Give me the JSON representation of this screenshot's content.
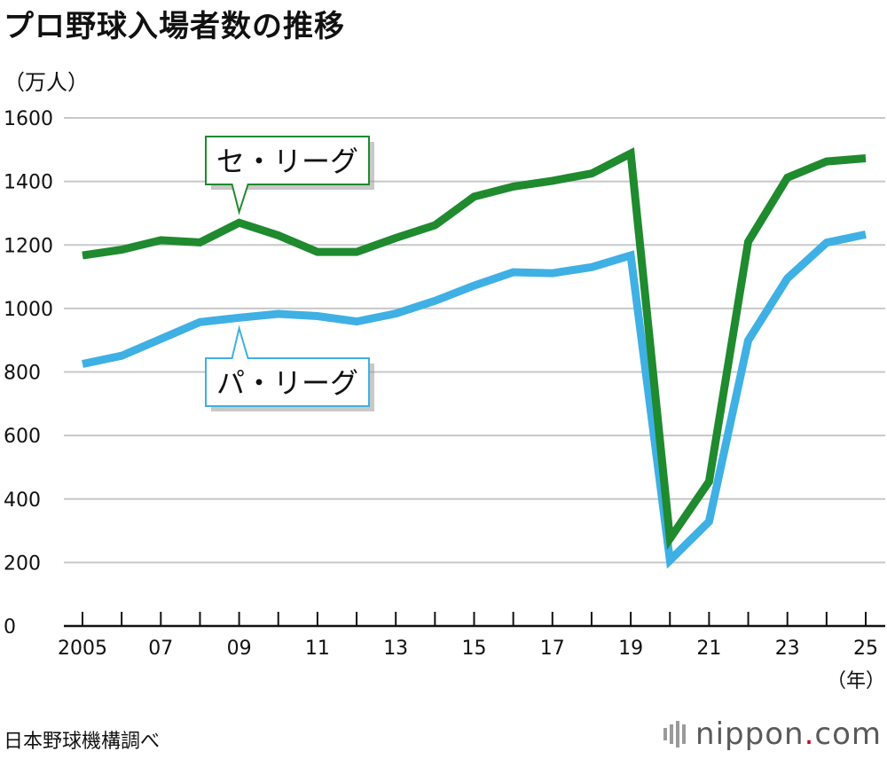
{
  "colors": {
    "central": "#1f8a2e",
    "pacific": "#3fb0e3",
    "grid": "#c8c8c8",
    "axis": "#111111",
    "logo_dot": "#d0021b"
  },
  "logo": {
    "name": "nippon",
    "dot": ".",
    "suffix": "com"
  },
  "chart_data": {
    "type": "line",
    "title": "プロ野球入場者数の推移",
    "ylabel": "（万人）",
    "xlabel": "（年）",
    "source": "日本野球機構調べ",
    "x": [
      2005,
      2006,
      2007,
      2008,
      2009,
      2010,
      2011,
      2012,
      2013,
      2014,
      2015,
      2016,
      2017,
      2018,
      2019,
      2020,
      2021,
      2022,
      2023,
      2024,
      2025
    ],
    "x_tick_labels": [
      {
        "year": 2005,
        "label": "2005"
      },
      {
        "year": 2007,
        "label": "07"
      },
      {
        "year": 2009,
        "label": "09"
      },
      {
        "year": 2011,
        "label": "11"
      },
      {
        "year": 2013,
        "label": "13"
      },
      {
        "year": 2015,
        "label": "15"
      },
      {
        "year": 2017,
        "label": "17"
      },
      {
        "year": 2019,
        "label": "19"
      },
      {
        "year": 2021,
        "label": "21"
      },
      {
        "year": 2023,
        "label": "23"
      },
      {
        "year": 2025,
        "label": "25"
      }
    ],
    "ylim": [
      0,
      1600
    ],
    "yticks": [
      0,
      200,
      400,
      600,
      800,
      1000,
      1200,
      1400,
      1600
    ],
    "grid": true,
    "series": [
      {
        "name": "セ・リーグ",
        "color_key": "central",
        "values": [
          1167,
          1185,
          1215,
          1208,
          1270,
          1230,
          1178,
          1178,
          1222,
          1262,
          1352,
          1384,
          1402,
          1425,
          1488,
          275,
          455,
          1210,
          1412,
          1463,
          1473
        ],
        "callout_year": 2009
      },
      {
        "name": "パ・リーグ",
        "color_key": "pacific",
        "values": [
          825,
          851,
          904,
          957,
          971,
          983,
          976,
          959,
          984,
          1024,
          1072,
          1114,
          1111,
          1130,
          1167,
          207,
          329,
          899,
          1095,
          1207,
          1233
        ],
        "callout_year": 2009
      }
    ]
  }
}
